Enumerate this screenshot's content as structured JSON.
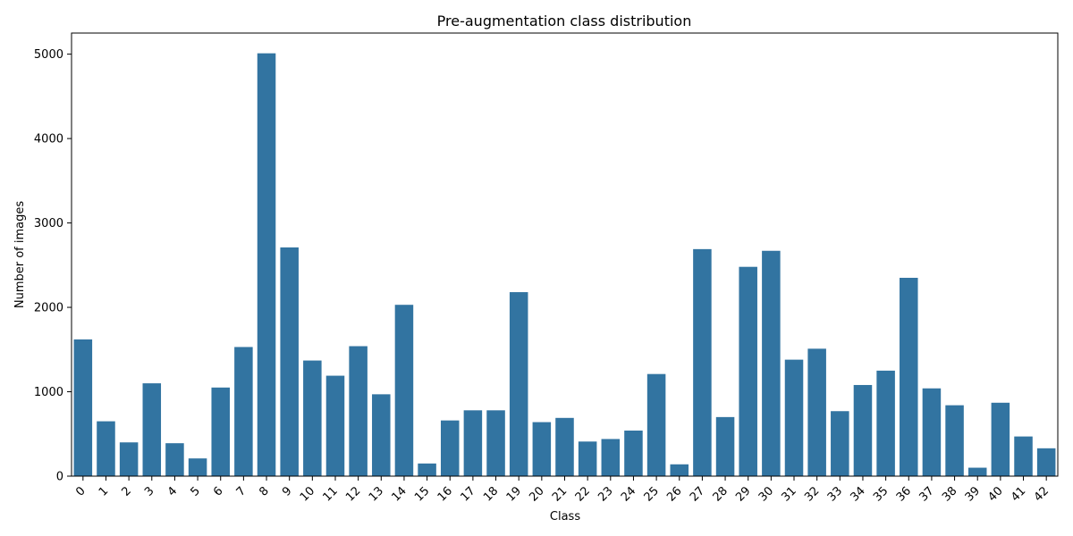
{
  "chart_data": {
    "type": "bar",
    "title": "Pre-augmentation class distribution",
    "xlabel": "Class",
    "ylabel": "Number of images",
    "categories": [
      "0",
      "1",
      "2",
      "3",
      "4",
      "5",
      "6",
      "7",
      "8",
      "9",
      "10",
      "11",
      "12",
      "13",
      "14",
      "15",
      "16",
      "17",
      "18",
      "19",
      "20",
      "21",
      "22",
      "23",
      "24",
      "25",
      "26",
      "27",
      "28",
      "29",
      "30",
      "31",
      "32",
      "33",
      "34",
      "35",
      "36",
      "37",
      "38",
      "39",
      "40",
      "41",
      "42"
    ],
    "values": [
      1620,
      650,
      400,
      1100,
      390,
      210,
      1050,
      1530,
      5010,
      2710,
      1370,
      1190,
      1540,
      970,
      2030,
      150,
      660,
      780,
      780,
      2180,
      640,
      690,
      410,
      440,
      540,
      1210,
      140,
      2690,
      700,
      2480,
      2670,
      1380,
      1510,
      770,
      1080,
      1250,
      2350,
      1040,
      840,
      100,
      870,
      470,
      330
    ],
    "ylim": [
      0,
      5250
    ],
    "yticks": [
      0,
      1000,
      2000,
      3000,
      4000,
      5000
    ],
    "bar_color": "#3274a1",
    "grid": false,
    "legend": "none"
  }
}
